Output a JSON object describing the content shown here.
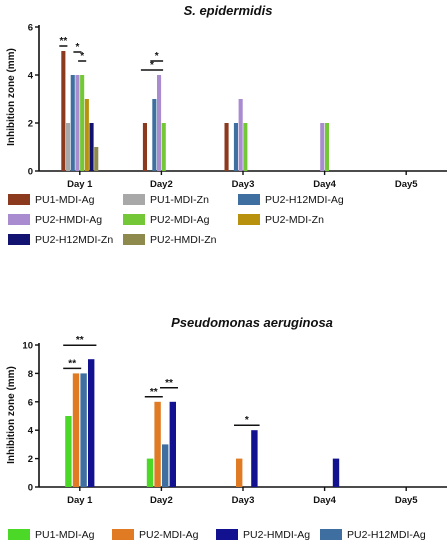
{
  "chart_data": [
    {
      "type": "bar",
      "title": "S. epidermidis",
      "ylabel": "Inhibition zone (mm)",
      "xlabel": "",
      "ylim": [
        0,
        6
      ],
      "yticks": [
        0,
        2,
        4,
        6
      ],
      "categories": [
        "Day 1",
        "Day2",
        "Day3",
        "Day4",
        "Day5"
      ],
      "series": [
        {
          "name": "PU1-MDI-Ag",
          "color": "#8B3A1E",
          "values": [
            5,
            2,
            2,
            0,
            0
          ]
        },
        {
          "name": "PU1-MDI-Zn",
          "color": "#A8A8A8",
          "values": [
            2,
            0,
            0,
            0,
            0
          ]
        },
        {
          "name": "PU2-H12MDI-Ag",
          "color": "#3E6FA0",
          "values": [
            4,
            3,
            2,
            0,
            0
          ]
        },
        {
          "name": "PU2-HMDI-Ag",
          "color": "#A98BD0",
          "values": [
            4,
            4,
            3,
            2,
            0
          ]
        },
        {
          "name": "PU2-MDI-Ag",
          "color": "#74C838",
          "values": [
            4,
            2,
            2,
            2,
            0
          ]
        },
        {
          "name": "PU2-MDI-Zn",
          "color": "#B8920E",
          "values": [
            3,
            0,
            0,
            0,
            0
          ]
        },
        {
          "name": "PU2-H12MDI-Zn",
          "color": "#121270",
          "values": [
            2,
            0,
            0,
            0,
            0
          ]
        },
        {
          "name": "PU2-HMDI-Zn",
          "color": "#8E8A4E",
          "values": [
            1,
            0,
            0,
            0,
            0
          ]
        }
      ],
      "significance": [
        {
          "label": "**",
          "category": "Day 1",
          "from": 0,
          "to": 0
        },
        {
          "label": "*",
          "category": "Day 1",
          "from": 4,
          "to": 4
        },
        {
          "label": "*",
          "category": "Day 1",
          "from": 3,
          "to": 3
        },
        {
          "label": "*",
          "category": "Day2",
          "from": 0,
          "to": 3
        },
        {
          "label": "*",
          "category": "Day2",
          "from": 2,
          "to": 3
        }
      ]
    },
    {
      "type": "bar",
      "title": "Pseudomonas aeruginosa",
      "ylabel": "Inhibition zone (mm)",
      "xlabel": "",
      "ylim": [
        0,
        10
      ],
      "yticks": [
        0,
        2,
        4,
        6,
        8,
        10
      ],
      "categories": [
        "Day 1",
        "Day2",
        "Day3",
        "Day4",
        "Day5"
      ],
      "series": [
        {
          "name": "PU1-MDI-Ag",
          "color": "#4CD826",
          "values": [
            5,
            2,
            0,
            0,
            0
          ]
        },
        {
          "name": "PU2-MDI-Ag",
          "color": "#E07B24",
          "values": [
            8,
            6,
            2,
            0,
            0
          ]
        },
        {
          "name": "PU2-H12MDI-Ag",
          "color": "#3E6FA0",
          "values": [
            8,
            3,
            0,
            0,
            0
          ]
        },
        {
          "name": "PU2-HMDI-Ag",
          "color": "#121290",
          "values": [
            9,
            6,
            4,
            2,
            0
          ]
        }
      ],
      "significance": [
        {
          "label": "**",
          "category": "Day 1",
          "from": 0,
          "to": 1
        },
        {
          "label": "**",
          "category": "Day 1",
          "from": 0,
          "to": 3
        },
        {
          "label": "**",
          "category": "Day2",
          "from": 0,
          "to": 1
        },
        {
          "label": "**",
          "category": "Day2",
          "from": 2,
          "to": 3
        },
        {
          "label": "*",
          "category": "Day3",
          "from": 1,
          "to": 3
        }
      ]
    }
  ],
  "legends": [
    {
      "entries": [
        {
          "name": "PU1-MDI-Ag",
          "color": "#8B3A1E"
        },
        {
          "name": "PU1-MDI-Zn",
          "color": "#A8A8A8"
        },
        {
          "name": "PU2-H12MDI-Ag",
          "color": "#3E6FA0"
        },
        {
          "name": "PU2-HMDI-Ag",
          "color": "#A98BD0"
        },
        {
          "name": "PU2-MDI-Ag",
          "color": "#74C838"
        },
        {
          "name": "PU2-MDI-Zn",
          "color": "#B8920E"
        },
        {
          "name": "PU2-H12MDI-Zn",
          "color": "#121270"
        },
        {
          "name": "PU2-HMDI-Zn",
          "color": "#8E8A4E"
        }
      ]
    },
    {
      "entries": [
        {
          "name": "PU1-MDI-Ag",
          "color": "#4CD826"
        },
        {
          "name": "PU2-MDI-Ag",
          "color": "#E07B24"
        },
        {
          "name": "PU2-HMDI-Ag",
          "color": "#121290"
        },
        {
          "name": "PU2-H12MDI-Ag",
          "color": "#3E6FA0"
        }
      ]
    }
  ]
}
